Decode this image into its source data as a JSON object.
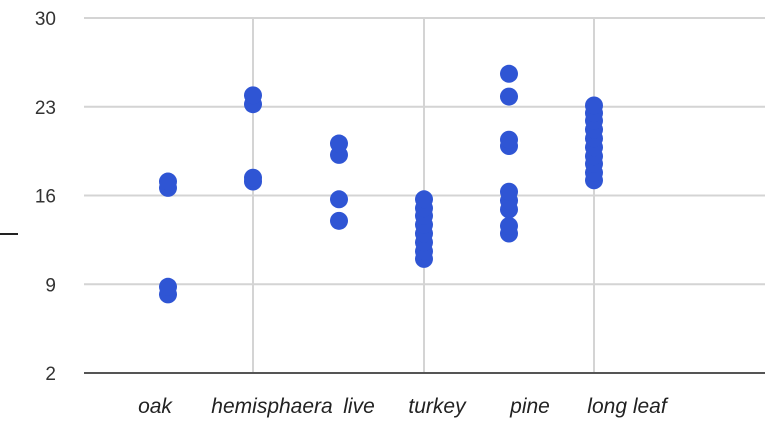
{
  "chart_data": {
    "type": "scatter",
    "categories": [
      "oak",
      "hemisphaera",
      "live",
      "turkey",
      "pine",
      "long leaf"
    ],
    "yticks": [
      2,
      9,
      16,
      23,
      30
    ],
    "ylim": [
      2,
      30
    ],
    "grid": true,
    "marker_color": "#2f55d4",
    "series": [
      {
        "values": [
          [
            0,
            8.2
          ],
          [
            0,
            8.8
          ],
          [
            0,
            16.6
          ],
          [
            0,
            17.1
          ],
          [
            1,
            17.1
          ],
          [
            1,
            17.4
          ],
          [
            1,
            23.2
          ],
          [
            1,
            23.9
          ],
          [
            2,
            14.0
          ],
          [
            2,
            15.7
          ],
          [
            2,
            19.2
          ],
          [
            2,
            20.1
          ],
          [
            3,
            11.0
          ],
          [
            3,
            11.6
          ],
          [
            3,
            12.3
          ],
          [
            3,
            13.0
          ],
          [
            3,
            13.7
          ],
          [
            3,
            14.4
          ],
          [
            3,
            15.0
          ],
          [
            3,
            15.7
          ],
          [
            4,
            13.0
          ],
          [
            4,
            13.6
          ],
          [
            4,
            14.9
          ],
          [
            4,
            15.6
          ],
          [
            4,
            16.3
          ],
          [
            4,
            19.9
          ],
          [
            4,
            20.4
          ],
          [
            4,
            23.8
          ],
          [
            4,
            25.6
          ],
          [
            5,
            17.2
          ],
          [
            5,
            17.8
          ],
          [
            5,
            18.5
          ],
          [
            5,
            19.1
          ],
          [
            5,
            19.8
          ],
          [
            5,
            20.5
          ],
          [
            5,
            21.2
          ],
          [
            5,
            21.9
          ],
          [
            5,
            22.5
          ],
          [
            5,
            23.1
          ]
        ]
      }
    ]
  }
}
